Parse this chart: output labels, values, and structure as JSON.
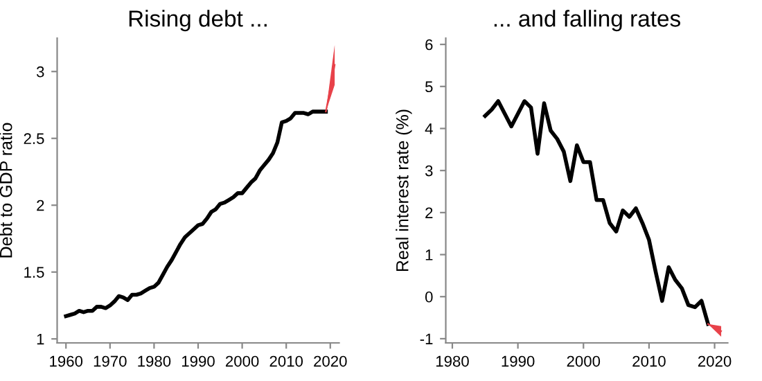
{
  "chart_data": [
    {
      "type": "line",
      "title": "Rising debt ...",
      "ylabel": "Debt to GDP ratio",
      "xlim": [
        1958,
        2022
      ],
      "xticks": [
        1960,
        1970,
        1980,
        1990,
        2000,
        2010,
        2020
      ],
      "ylim": [
        0.97,
        3.25
      ],
      "yticks": [
        1,
        1.5,
        2,
        2.5,
        3
      ],
      "grid": false,
      "legend": false,
      "series": [
        {
          "color": "#000000",
          "x": [
            1960,
            1961,
            1962,
            1963,
            1964,
            1965,
            1966,
            1967,
            1968,
            1969,
            1970,
            1971,
            1972,
            1973,
            1974,
            1975,
            1976,
            1977,
            1978,
            1979,
            1980,
            1981,
            1982,
            1983,
            1984,
            1985,
            1986,
            1987,
            1988,
            1989,
            1990,
            1991,
            1992,
            1993,
            1994,
            1995,
            1996,
            1997,
            1998,
            1999,
            2000,
            2001,
            2002,
            2003,
            2004,
            2005,
            2006,
            2007,
            2008,
            2009,
            2010,
            2011,
            2012,
            2013,
            2014,
            2015,
            2016,
            2017,
            2018,
            2019
          ],
          "values": [
            1.17,
            1.18,
            1.19,
            1.21,
            1.2,
            1.21,
            1.21,
            1.24,
            1.24,
            1.23,
            1.25,
            1.28,
            1.32,
            1.31,
            1.29,
            1.33,
            1.33,
            1.34,
            1.36,
            1.38,
            1.39,
            1.42,
            1.48,
            1.54,
            1.59,
            1.65,
            1.71,
            1.76,
            1.79,
            1.82,
            1.85,
            1.86,
            1.9,
            1.95,
            1.97,
            2.01,
            2.02,
            2.04,
            2.06,
            2.09,
            2.09,
            2.13,
            2.17,
            2.2,
            2.26,
            2.3,
            2.34,
            2.39,
            2.47,
            2.62,
            2.63,
            2.65,
            2.69,
            2.69,
            2.69,
            2.68,
            2.7,
            2.7,
            2.7,
            2.7
          ]
        },
        {
          "type": "line",
          "color": "#e8424a",
          "x": [
            2019,
            2021
          ],
          "values": [
            2.7,
            3.05
          ],
          "lower": [
            2.7,
            2.9
          ],
          "upper": [
            2.7,
            3.2
          ]
        }
      ]
    },
    {
      "type": "line",
      "title": "... and falling rates",
      "ylabel": "Real interest rate (%)",
      "xlim": [
        1979,
        2022
      ],
      "xticks": [
        1980,
        1990,
        2000,
        2010,
        2020
      ],
      "ylim": [
        -1.1,
        6.15
      ],
      "yticks": [
        -1,
        0,
        1,
        2,
        3,
        4,
        5,
        6
      ],
      "grid": false,
      "legend": false,
      "series": [
        {
          "color": "#000000",
          "x": [
            1985,
            1986,
            1987,
            1988,
            1989,
            1990,
            1991,
            1992,
            1993,
            1994,
            1995,
            1996,
            1997,
            1998,
            1999,
            2000,
            2001,
            2002,
            2003,
            2004,
            2005,
            2006,
            2007,
            2008,
            2009,
            2010,
            2011,
            2012,
            2013,
            2014,
            2015,
            2016,
            2017,
            2018,
            2019
          ],
          "values": [
            4.3,
            4.45,
            4.65,
            4.35,
            4.05,
            4.35,
            4.65,
            4.5,
            3.4,
            4.6,
            3.95,
            3.75,
            3.45,
            2.75,
            3.6,
            3.2,
            3.2,
            2.3,
            2.3,
            1.75,
            1.55,
            2.05,
            1.9,
            2.1,
            1.75,
            1.35,
            0.6,
            -0.1,
            0.7,
            0.4,
            0.2,
            -0.2,
            -0.25,
            -0.1,
            -0.65
          ]
        },
        {
          "type": "line",
          "color": "#e8424a",
          "x": [
            2019,
            2021
          ],
          "values": [
            -0.65,
            -0.82
          ],
          "lower": [
            -0.65,
            -0.95
          ],
          "upper": [
            -0.65,
            -0.7
          ]
        }
      ]
    }
  ]
}
